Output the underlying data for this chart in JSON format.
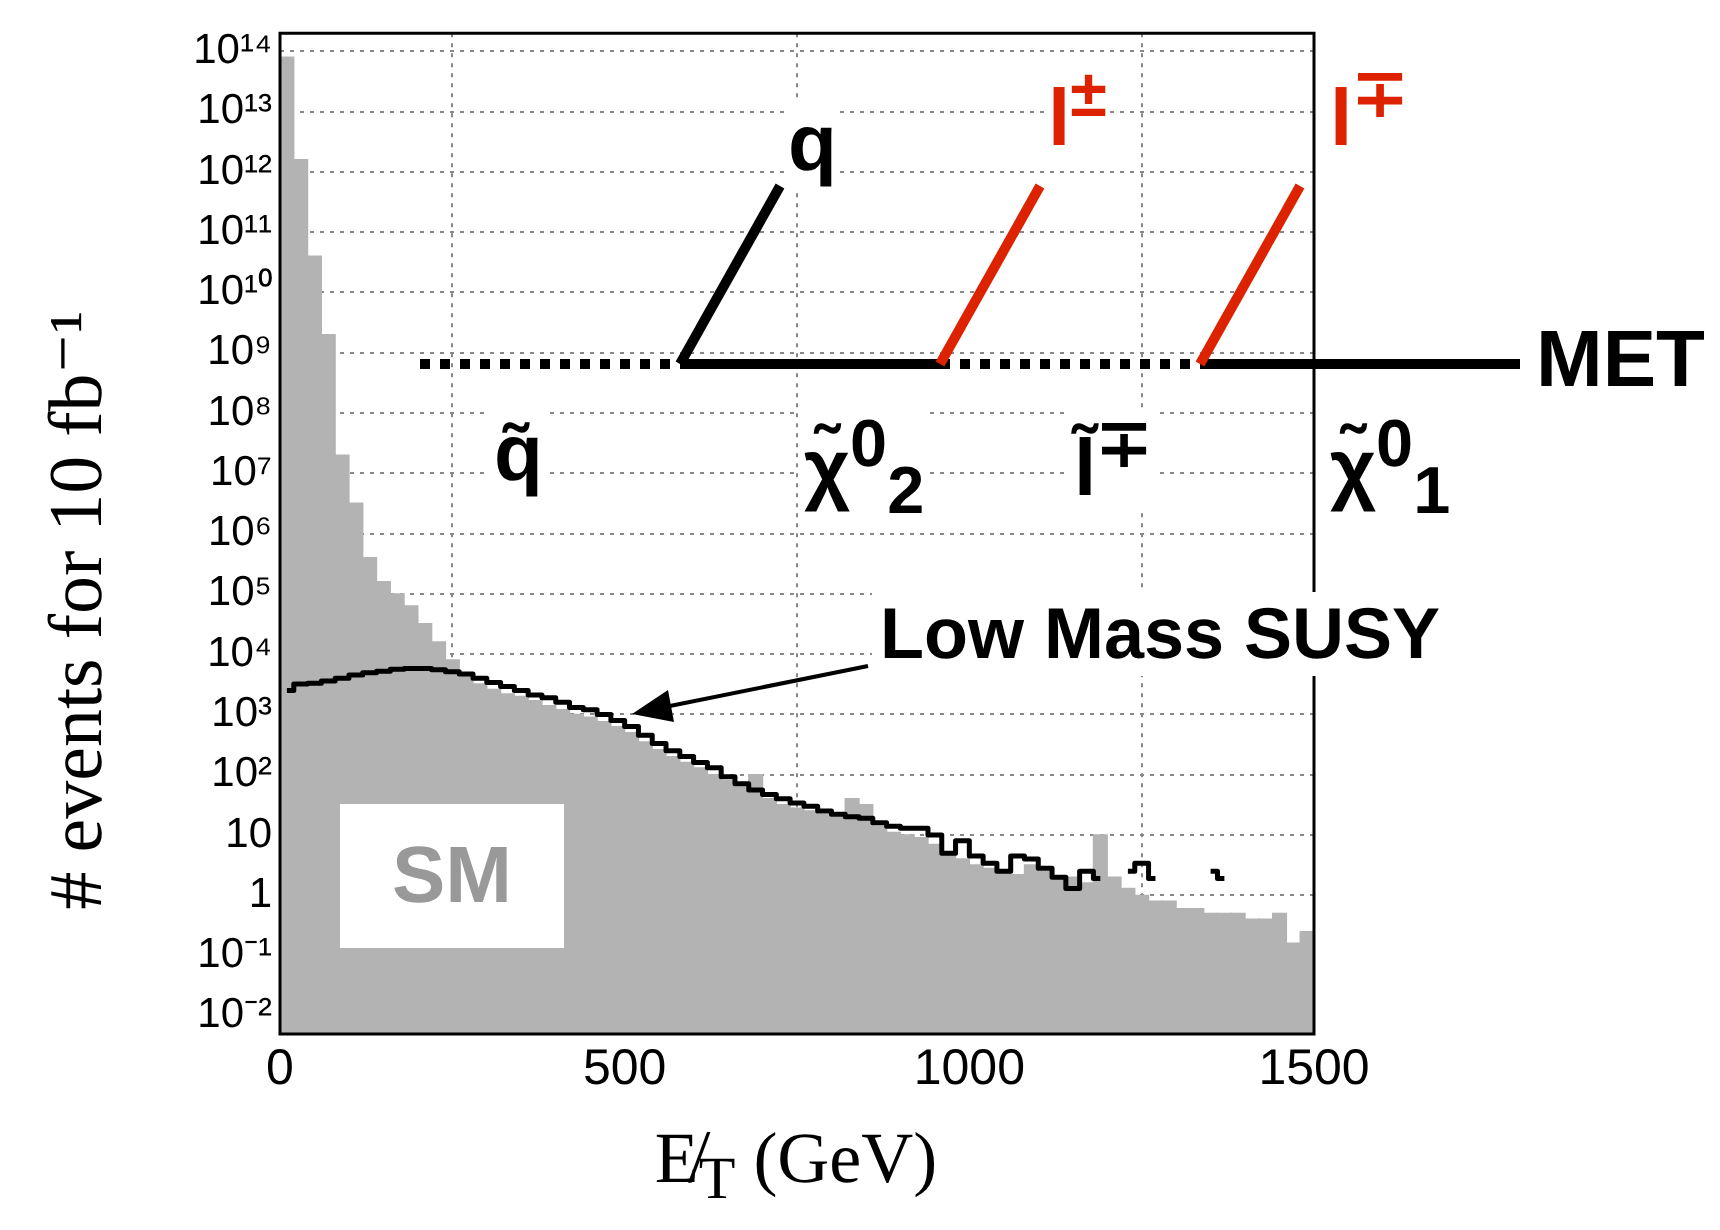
{
  "chart_data": {
    "type": "histogram",
    "xlabel": "E̸$_{T}$ (GeV)",
    "ylabel": "# events for 10 fb⁻¹",
    "bins": [
      0,
      20,
      40,
      60,
      80,
      100,
      120,
      140,
      160,
      180,
      200,
      220,
      240,
      260,
      280,
      300,
      320,
      340,
      360,
      380,
      400,
      420,
      440,
      460,
      480,
      500,
      520,
      540,
      560,
      580,
      600,
      620,
      640,
      660,
      680,
      700,
      720,
      740,
      760,
      780,
      800,
      820,
      840,
      860,
      880,
      900,
      920,
      940,
      960,
      980,
      1000,
      1020,
      1040,
      1060,
      1080,
      1100,
      1120,
      1140,
      1160,
      1180,
      1200,
      1220,
      1240,
      1260,
      1280,
      1300,
      1320,
      1340,
      1360,
      1380,
      1400,
      1420,
      1440,
      1460,
      1480,
      1500
    ],
    "series": [
      {
        "name": "SM",
        "color": "#b3b3b3",
        "values": [
          80000000000000.0,
          1600000000000.0,
          40000000000.0,
          2000000000.0,
          20000000.0,
          3200000.0,
          400000.0,
          160000.0,
          100000.0,
          63000,
          32000,
          16000,
          8000,
          4500,
          3200,
          2600,
          2200,
          2000,
          1700,
          1400,
          1200,
          1000,
          900,
          760,
          630,
          500,
          350,
          260,
          200,
          160,
          130,
          100,
          80,
          63,
          100,
          40,
          32,
          28,
          25,
          22,
          20,
          40,
          32,
          14,
          11,
          10,
          9,
          7,
          5,
          4,
          3.2,
          2.8,
          2.5,
          2.2,
          3.2,
          2.5,
          2,
          2,
          1.6,
          10,
          2,
          1.3,
          1,
          0.8,
          0.8,
          0.6,
          0.6,
          0.5,
          0.5,
          0.5,
          0.4,
          0.4,
          0.5,
          0.16,
          0.25
        ]
      },
      {
        "name": "Low Mass SUSY",
        "type": "step",
        "color": "#000000",
        "x": [
          10,
          30,
          50,
          70,
          90,
          110,
          130,
          150,
          170,
          190,
          210,
          230,
          250,
          270,
          290,
          310,
          330,
          350,
          370,
          390,
          410,
          430,
          450,
          470,
          490,
          510,
          530,
          550,
          570,
          590,
          610,
          630,
          650,
          670,
          690,
          710,
          730,
          750,
          770,
          790,
          810,
          830,
          850,
          870,
          890,
          910,
          930,
          950,
          970,
          990,
          1010,
          1030,
          1050,
          1070,
          1090,
          1110,
          1130,
          1150,
          1170,
          1190,
          1210,
          1230,
          1250,
          1270,
          1290,
          1310,
          1330,
          1350,
          1370
        ],
        "values": [
          2500,
          3200,
          3300,
          3600,
          4000,
          4500,
          4900,
          5200,
          5600,
          5800,
          5800,
          5500,
          5100,
          4700,
          4000,
          3400,
          2900,
          2500,
          2100,
          1900,
          1600,
          1300,
          1200,
          1000,
          790,
          630,
          450,
          330,
          250,
          200,
          160,
          130,
          93,
          71,
          56,
          47,
          40,
          34,
          30,
          25,
          22,
          20,
          19,
          16,
          14,
          13,
          13,
          10,
          5,
          8,
          4.5,
          3.4,
          2.5,
          4.5,
          4,
          2.8,
          2,
          1.3,
          2.5,
          1.9,
          null,
          2.5,
          3.4,
          1.9,
          null,
          null,
          null,
          2.5,
          1.9
        ]
      }
    ],
    "xlim": [
      0,
      1500
    ],
    "xticks": [
      0,
      500,
      1000,
      1500
    ],
    "ylim": [
      0.005,
      200000000000000.0
    ],
    "yticks": [
      {
        "value": 0.01,
        "label": "10⁻²"
      },
      {
        "value": 0.1,
        "label": "10⁻¹"
      },
      1,
      10,
      {
        "value": 100,
        "label": "10²"
      },
      {
        "value": 1000,
        "label": "10³"
      },
      {
        "value": 10000,
        "label": "10⁴"
      },
      {
        "value": 100000,
        "label": "10⁵"
      },
      {
        "value": 1000000,
        "label": "10⁶"
      },
      {
        "value": 10000000,
        "label": "10⁷"
      },
      {
        "value": 100000000,
        "label": "10⁸"
      },
      {
        "value": 1000000000,
        "label": "10⁹"
      },
      {
        "value": 10000000000,
        "label": "10¹⁰"
      },
      {
        "value": 100000000000,
        "label": "10¹¹"
      },
      {
        "value": 1000000000000,
        "label": "10¹²"
      },
      {
        "value": 10000000000000,
        "label": "10¹³"
      },
      {
        "value": 100000000000000,
        "label": "10¹⁴"
      }
    ],
    "log": "y",
    "grid": true,
    "annotations": [
      "q",
      "l$^{±}$",
      "l$^{∓}$",
      "MET",
      "q̃",
      "χ̃$^{0}$$_{2}$",
      "l̃$^{∓}$",
      "χ̃$^{0}$$_{1}$"
    ]
  }
}
